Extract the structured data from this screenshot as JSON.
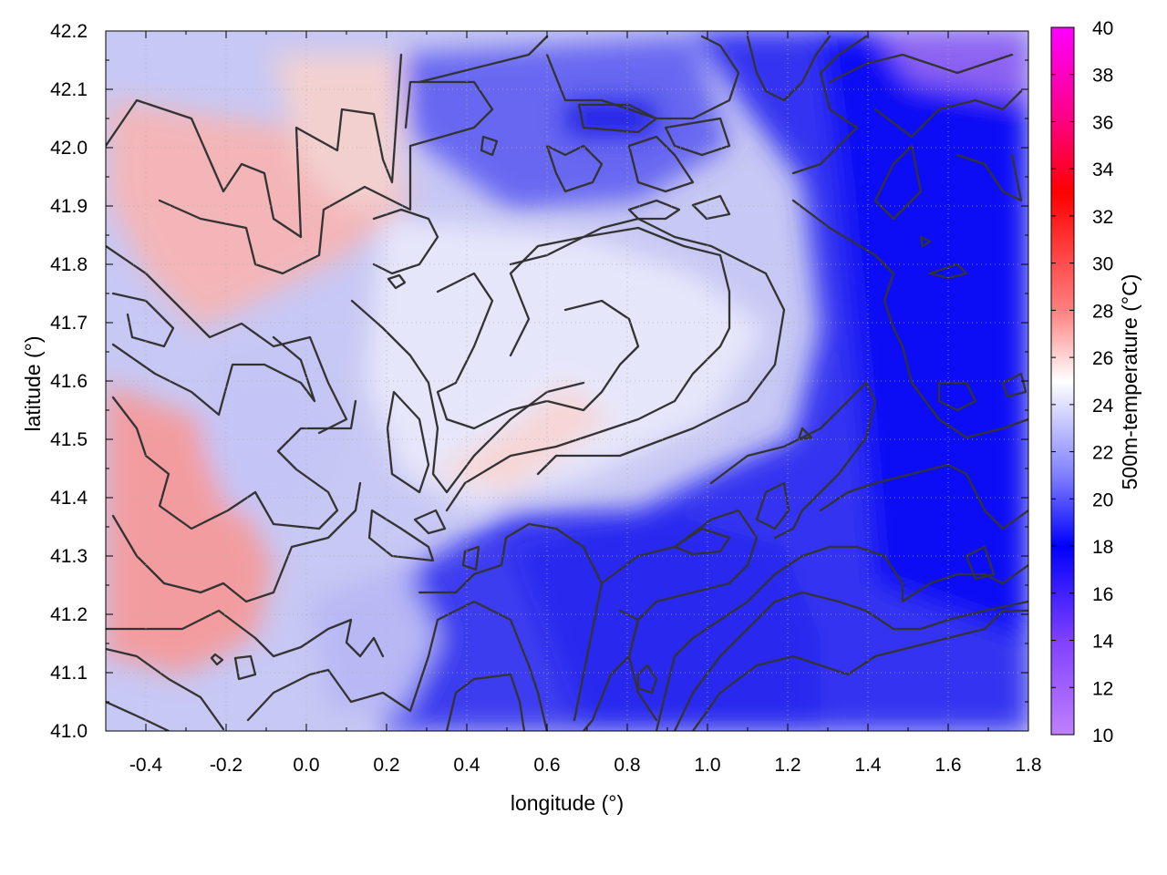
{
  "chart_data": {
    "type": "heatmap",
    "xlabel": "longitude (°)",
    "ylabel": "latitude (°)",
    "colorbar_label": "500m-temperature (°C)",
    "xlim": [
      -0.5,
      1.8
    ],
    "ylim": [
      41.0,
      42.2
    ],
    "xticks": [
      "-0.4",
      "-0.2",
      "0.0",
      "0.2",
      "0.4",
      "0.6",
      "0.8",
      "1.0",
      "1.2",
      "1.4",
      "1.6",
      "1.8"
    ],
    "yticks": [
      "41.0",
      "41.1",
      "41.2",
      "41.3",
      "41.4",
      "41.5",
      "41.6",
      "41.7",
      "41.8",
      "41.9",
      "42.0",
      "42.1",
      "42.2"
    ],
    "colorbar": {
      "range": [
        10,
        40
      ],
      "ticks": [
        "10",
        "12",
        "14",
        "16",
        "18",
        "20",
        "22",
        "24",
        "26",
        "28",
        "30",
        "32",
        "34",
        "36",
        "38",
        "40"
      ],
      "stops": [
        {
          "value": 10,
          "color": "#c080ff"
        },
        {
          "value": 14,
          "color": "#8040ff"
        },
        {
          "value": 18,
          "color": "#0000ff"
        },
        {
          "value": 21,
          "color": "#8080ff"
        },
        {
          "value": 25,
          "color": "#ffffff"
        },
        {
          "value": 28,
          "color": "#ff8080"
        },
        {
          "value": 33,
          "color": "#ff0000"
        },
        {
          "value": 36,
          "color": "#ff0080"
        },
        {
          "value": 40,
          "color": "#ff00ff"
        }
      ]
    },
    "grid": true,
    "contours": true
  }
}
